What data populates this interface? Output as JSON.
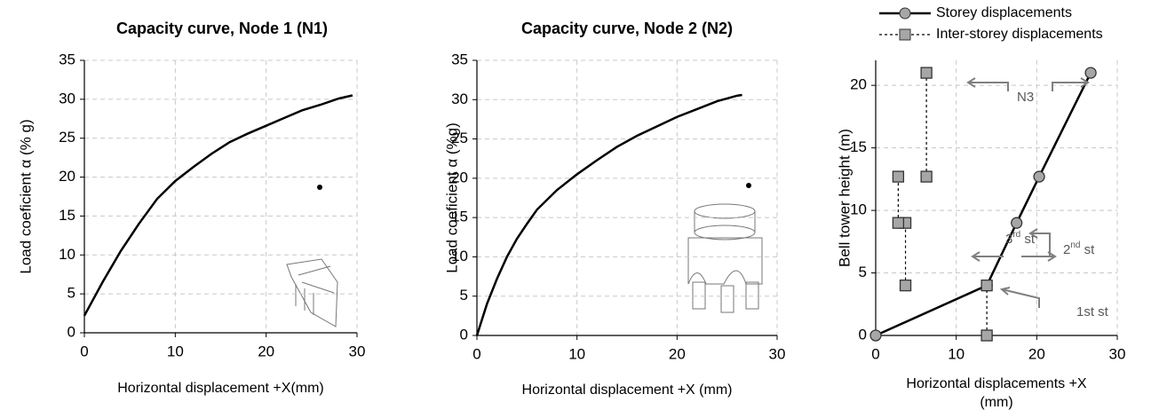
{
  "chart_data": [
    {
      "type": "line",
      "title": "Capacity curve, Node 1 (N1)",
      "xlabel": "Horizontal displacement +X(mm)",
      "ylabel": "Load coeficient α  (% g)",
      "xlim": [
        0,
        30
      ],
      "xticks": [
        0,
        10,
        20,
        30
      ],
      "ylim": [
        0,
        35
      ],
      "yticks": [
        0,
        5,
        10,
        15,
        20,
        25,
        30,
        35
      ],
      "grid": true,
      "series": [
        {
          "color": "#000000",
          "x": [
            0,
            2,
            4,
            6,
            8,
            10,
            12,
            14,
            16,
            18,
            20,
            22,
            24,
            26,
            28,
            29.5
          ],
          "values": [
            2.2,
            6.5,
            10.5,
            14,
            17.2,
            19.5,
            21.3,
            23,
            24.5,
            25.6,
            26.6,
            27.6,
            28.6,
            29.3,
            30.1,
            30.5
          ]
        }
      ]
    },
    {
      "type": "line",
      "title": "Capacity curve, Node 2 (N2)",
      "xlabel": "Horizontal displacement +X (mm)",
      "ylabel": "Load coeficient α  (%g)",
      "xlim": [
        0,
        30
      ],
      "xticks": [
        0,
        10,
        20,
        30
      ],
      "ylim": [
        0,
        35
      ],
      "yticks": [
        0,
        5,
        10,
        15,
        20,
        25,
        30,
        35
      ],
      "grid": true,
      "series": [
        {
          "color": "#000000",
          "x": [
            0,
            1,
            2,
            3,
            4,
            5,
            6,
            8,
            10,
            12,
            14,
            16,
            18,
            20,
            22,
            24,
            26,
            26.5
          ],
          "values": [
            0,
            4,
            7.2,
            10,
            12.3,
            14.2,
            16,
            18.5,
            20.5,
            22.3,
            24,
            25.4,
            26.6,
            27.8,
            28.8,
            29.8,
            30.5,
            30.6
          ]
        }
      ]
    },
    {
      "type": "line",
      "xlabel": [
        "Horizontal displacements +X",
        "(mm)"
      ],
      "ylabel": "Bell tower height (m)",
      "xlim": [
        0,
        30
      ],
      "xticks": [
        0,
        10,
        20,
        30
      ],
      "ylim": [
        0,
        22
      ],
      "yticks": [
        0,
        5,
        10,
        15,
        20
      ],
      "grid": true,
      "legend": "top",
      "series": [
        {
          "name": "Storey displacements",
          "color": "#000000",
          "marker": "circle",
          "marker_color": "#a6a6a6",
          "x": [
            0,
            13.8,
            17.5,
            20.3,
            26.7
          ],
          "values": [
            0,
            4,
            9,
            12.7,
            21
          ]
        },
        {
          "name": "Inter-storey displacements",
          "color": "#000000",
          "dashed": true,
          "marker": "square",
          "marker_color": "#a6a6a6",
          "x": [
            13.8,
            13.8,
            null,
            3.7,
            3.7,
            null,
            2.8,
            2.8,
            null,
            6.3,
            6.3
          ],
          "values": [
            0,
            4,
            null,
            4,
            9,
            null,
            9,
            12.7,
            null,
            12.7,
            21
          ]
        }
      ],
      "annotations": [
        [
          "N3"
        ],
        [
          "3",
          "rd",
          " st"
        ],
        [
          "2",
          "nd",
          " st"
        ],
        [
          "1st st"
        ]
      ]
    }
  ]
}
